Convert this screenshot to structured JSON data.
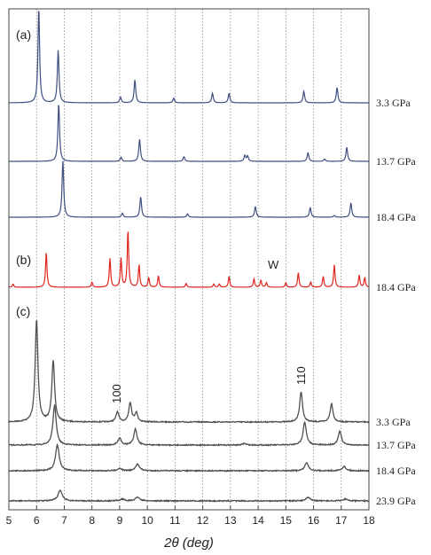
{
  "chart_data": {
    "type": "line",
    "xlabel": "2θ (deg)",
    "xlim": [
      5,
      18
    ],
    "x_ticks": [
      "5",
      "6",
      "7",
      "8",
      "9",
      "10",
      "11",
      "12",
      "13",
      "14",
      "15",
      "16",
      "17",
      "18"
    ],
    "grid": "vertical dotted lines at each integer 2θ",
    "colors": {
      "a": "#3f4f7f",
      "b": "#e0261f",
      "c": "#505050",
      "frame": "#444444"
    },
    "panels": [
      {
        "label": "(a)",
        "series": [
          {
            "name": "3.3 GPa",
            "color": "#3f4f7f",
            "peaks": [
              [
                6.08,
                1.0
              ],
              [
                6.78,
                0.55
              ],
              [
                9.03,
                0.06
              ],
              [
                9.55,
                0.24
              ],
              [
                10.95,
                0.05
              ],
              [
                12.35,
                0.1
              ],
              [
                12.95,
                0.1
              ],
              [
                15.65,
                0.12
              ],
              [
                16.85,
                0.16
              ]
            ]
          },
          {
            "name": "13.7 GPa",
            "color": "#3f4f7f",
            "peaks": [
              [
                6.8,
                1.0
              ],
              [
                9.05,
                0.07
              ],
              [
                9.72,
                0.38
              ],
              [
                11.32,
                0.08
              ],
              [
                13.52,
                0.1
              ],
              [
                13.62,
                0.09
              ],
              [
                15.8,
                0.15
              ],
              [
                16.4,
                0.04
              ],
              [
                17.2,
                0.24
              ]
            ]
          },
          {
            "name": "18.4 GPa",
            "color": "#3f4f7f",
            "peaks": [
              [
                6.95,
                1.0
              ],
              [
                9.1,
                0.07
              ],
              [
                9.76,
                0.36
              ],
              [
                11.45,
                0.06
              ],
              [
                13.9,
                0.19
              ],
              [
                15.88,
                0.17
              ],
              [
                16.75,
                0.03
              ],
              [
                17.35,
                0.25
              ]
            ]
          }
        ]
      },
      {
        "label": "(b)",
        "annotation": "W",
        "series": [
          {
            "name": "18.4 GPa",
            "color": "#e0261f",
            "peaks": [
              [
                5.15,
                0.05
              ],
              [
                6.35,
                0.55
              ],
              [
                8.0,
                0.08
              ],
              [
                8.65,
                0.45
              ],
              [
                9.05,
                0.45
              ],
              [
                9.3,
                0.9
              ],
              [
                9.7,
                0.35
              ],
              [
                10.05,
                0.15
              ],
              [
                10.4,
                0.18
              ],
              [
                11.4,
                0.06
              ],
              [
                12.4,
                0.05
              ],
              [
                12.6,
                0.05
              ],
              [
                12.95,
                0.17
              ],
              [
                13.85,
                0.13
              ],
              [
                14.1,
                0.11
              ],
              [
                14.3,
                0.07
              ],
              [
                15.0,
                0.07
              ],
              [
                15.45,
                0.23
              ],
              [
                15.9,
                0.08
              ],
              [
                16.35,
                0.17
              ],
              [
                16.75,
                0.35
              ],
              [
                17.65,
                0.19
              ],
              [
                17.85,
                0.15
              ]
            ]
          }
        ]
      },
      {
        "label": "(c)",
        "annotations": [
          "100",
          "110"
        ],
        "series": [
          {
            "name": "3.3 GPa",
            "color": "#505050",
            "peaks": [
              [
                6.0,
                1.0
              ],
              [
                6.6,
                0.6
              ],
              [
                8.92,
                0.1
              ],
              [
                9.38,
                0.19
              ],
              [
                9.6,
                0.09
              ],
              [
                15.55,
                0.3
              ],
              [
                16.65,
                0.18
              ]
            ]
          },
          {
            "name": "13.7 GPa",
            "color": "#505050",
            "peaks": [
              [
                6.65,
                0.5
              ],
              [
                9.0,
                0.09
              ],
              [
                9.57,
                0.2
              ],
              [
                13.5,
                0.02
              ],
              [
                15.68,
                0.29
              ],
              [
                16.95,
                0.17
              ]
            ]
          },
          {
            "name": "18.4 GPa",
            "color": "#505050",
            "peaks": [
              [
                6.75,
                0.42
              ],
              [
                9.0,
                0.04
              ],
              [
                9.65,
                0.11
              ],
              [
                15.75,
                0.13
              ],
              [
                17.1,
                0.07
              ]
            ]
          },
          {
            "name": "23.9 GPa",
            "color": "#505050",
            "peaks": [
              [
                6.85,
                0.17
              ],
              [
                9.1,
                0.03
              ],
              [
                9.65,
                0.06
              ],
              [
                15.8,
                0.06
              ],
              [
                17.15,
                0.03
              ]
            ]
          }
        ]
      }
    ]
  }
}
